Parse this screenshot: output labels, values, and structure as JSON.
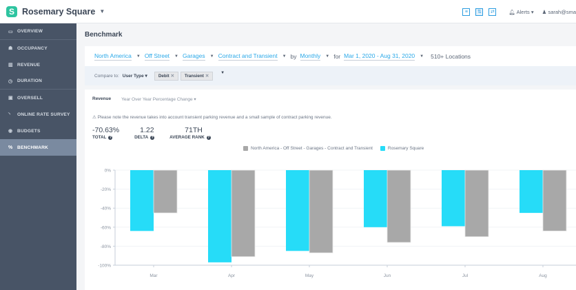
{
  "app": {
    "title": "Rosemary Square",
    "logo_letter": "S"
  },
  "topbar": {
    "icons": [
      "list-view-icon",
      "compare-icon",
      "refresh-icon"
    ],
    "icon_glyphs": [
      "≡",
      "⇅",
      "⇄"
    ],
    "alerts_label": "Alerts",
    "user_label": "sarah@sma"
  },
  "sidebar": {
    "items": [
      {
        "label": "OVERVIEW",
        "icon": "monitor-icon",
        "glyph": "▭"
      },
      {
        "label": "OCCUPANCY",
        "icon": "users-icon",
        "glyph": "☗"
      },
      {
        "label": "REVENUE",
        "icon": "bar-chart-icon",
        "glyph": "▥"
      },
      {
        "label": "DURATION",
        "icon": "clock-icon",
        "glyph": "◷"
      },
      {
        "label": "OVERSELL",
        "icon": "ticket-icon",
        "glyph": "▣"
      },
      {
        "label": "ONLINE RATE SURVEY",
        "icon": "rss-icon",
        "glyph": "◝"
      },
      {
        "label": "BUDGETS",
        "icon": "budget-icon",
        "glyph": "◉"
      },
      {
        "label": "BENCHMARK",
        "icon": "percent-icon",
        "glyph": "%"
      }
    ],
    "active": "BENCHMARK"
  },
  "main": {
    "page_title": "Benchmark",
    "filters": {
      "region": "North America",
      "facility": "Off Street",
      "structure": "Garages",
      "contract": "Contract and Transient",
      "by_word": "by",
      "interval": "Monthly",
      "for_word": "for",
      "date_range": "Mar 1, 2020 - Aug 31, 2020",
      "locations": "510+ Locations"
    },
    "compare": {
      "label": "Compare to:",
      "dimension": "User Type",
      "tags": [
        "Debit",
        "Transient"
      ]
    },
    "card": {
      "tab_active": "Revenue",
      "metric_select": "Year Over Year Percentage Change",
      "note": "Please note the revenue takes into account transient parking revenue and a small sample of contract parking revenue.",
      "stats": [
        {
          "value": "-70.63%",
          "label": "TOTAL"
        },
        {
          "value": "1.22",
          "label": "DELTA"
        },
        {
          "value": "71TH",
          "label": "AVERAGE RANK"
        }
      ]
    }
  },
  "chart_data": {
    "type": "bar",
    "title": "",
    "xlabel": "",
    "ylabel": "",
    "categories": [
      "Mar",
      "Apr",
      "May",
      "Jun",
      "Jul",
      "Aug"
    ],
    "series": [
      {
        "name": "Rosemary Square",
        "color": "#26dcf8",
        "values": [
          -64,
          -97,
          -85,
          -60,
          -59,
          -45
        ]
      },
      {
        "name": "North America - Off Street - Garages - Contract and Transient",
        "color": "#a8a8a8",
        "values": [
          -45,
          -91,
          -87,
          -76,
          -70,
          -64
        ]
      }
    ],
    "legend_order": [
      "North America - Off Street - Garages - Contract and Transient",
      "Rosemary Square"
    ],
    "ylim": [
      -100,
      0
    ],
    "yticks": [
      0,
      -20,
      -40,
      -60,
      -80,
      -100
    ],
    "ytick_labels": [
      "0%",
      "-20%",
      "-40%",
      "-60%",
      "-80%",
      "-100%"
    ],
    "grid": true,
    "legend_position": "top-center"
  }
}
